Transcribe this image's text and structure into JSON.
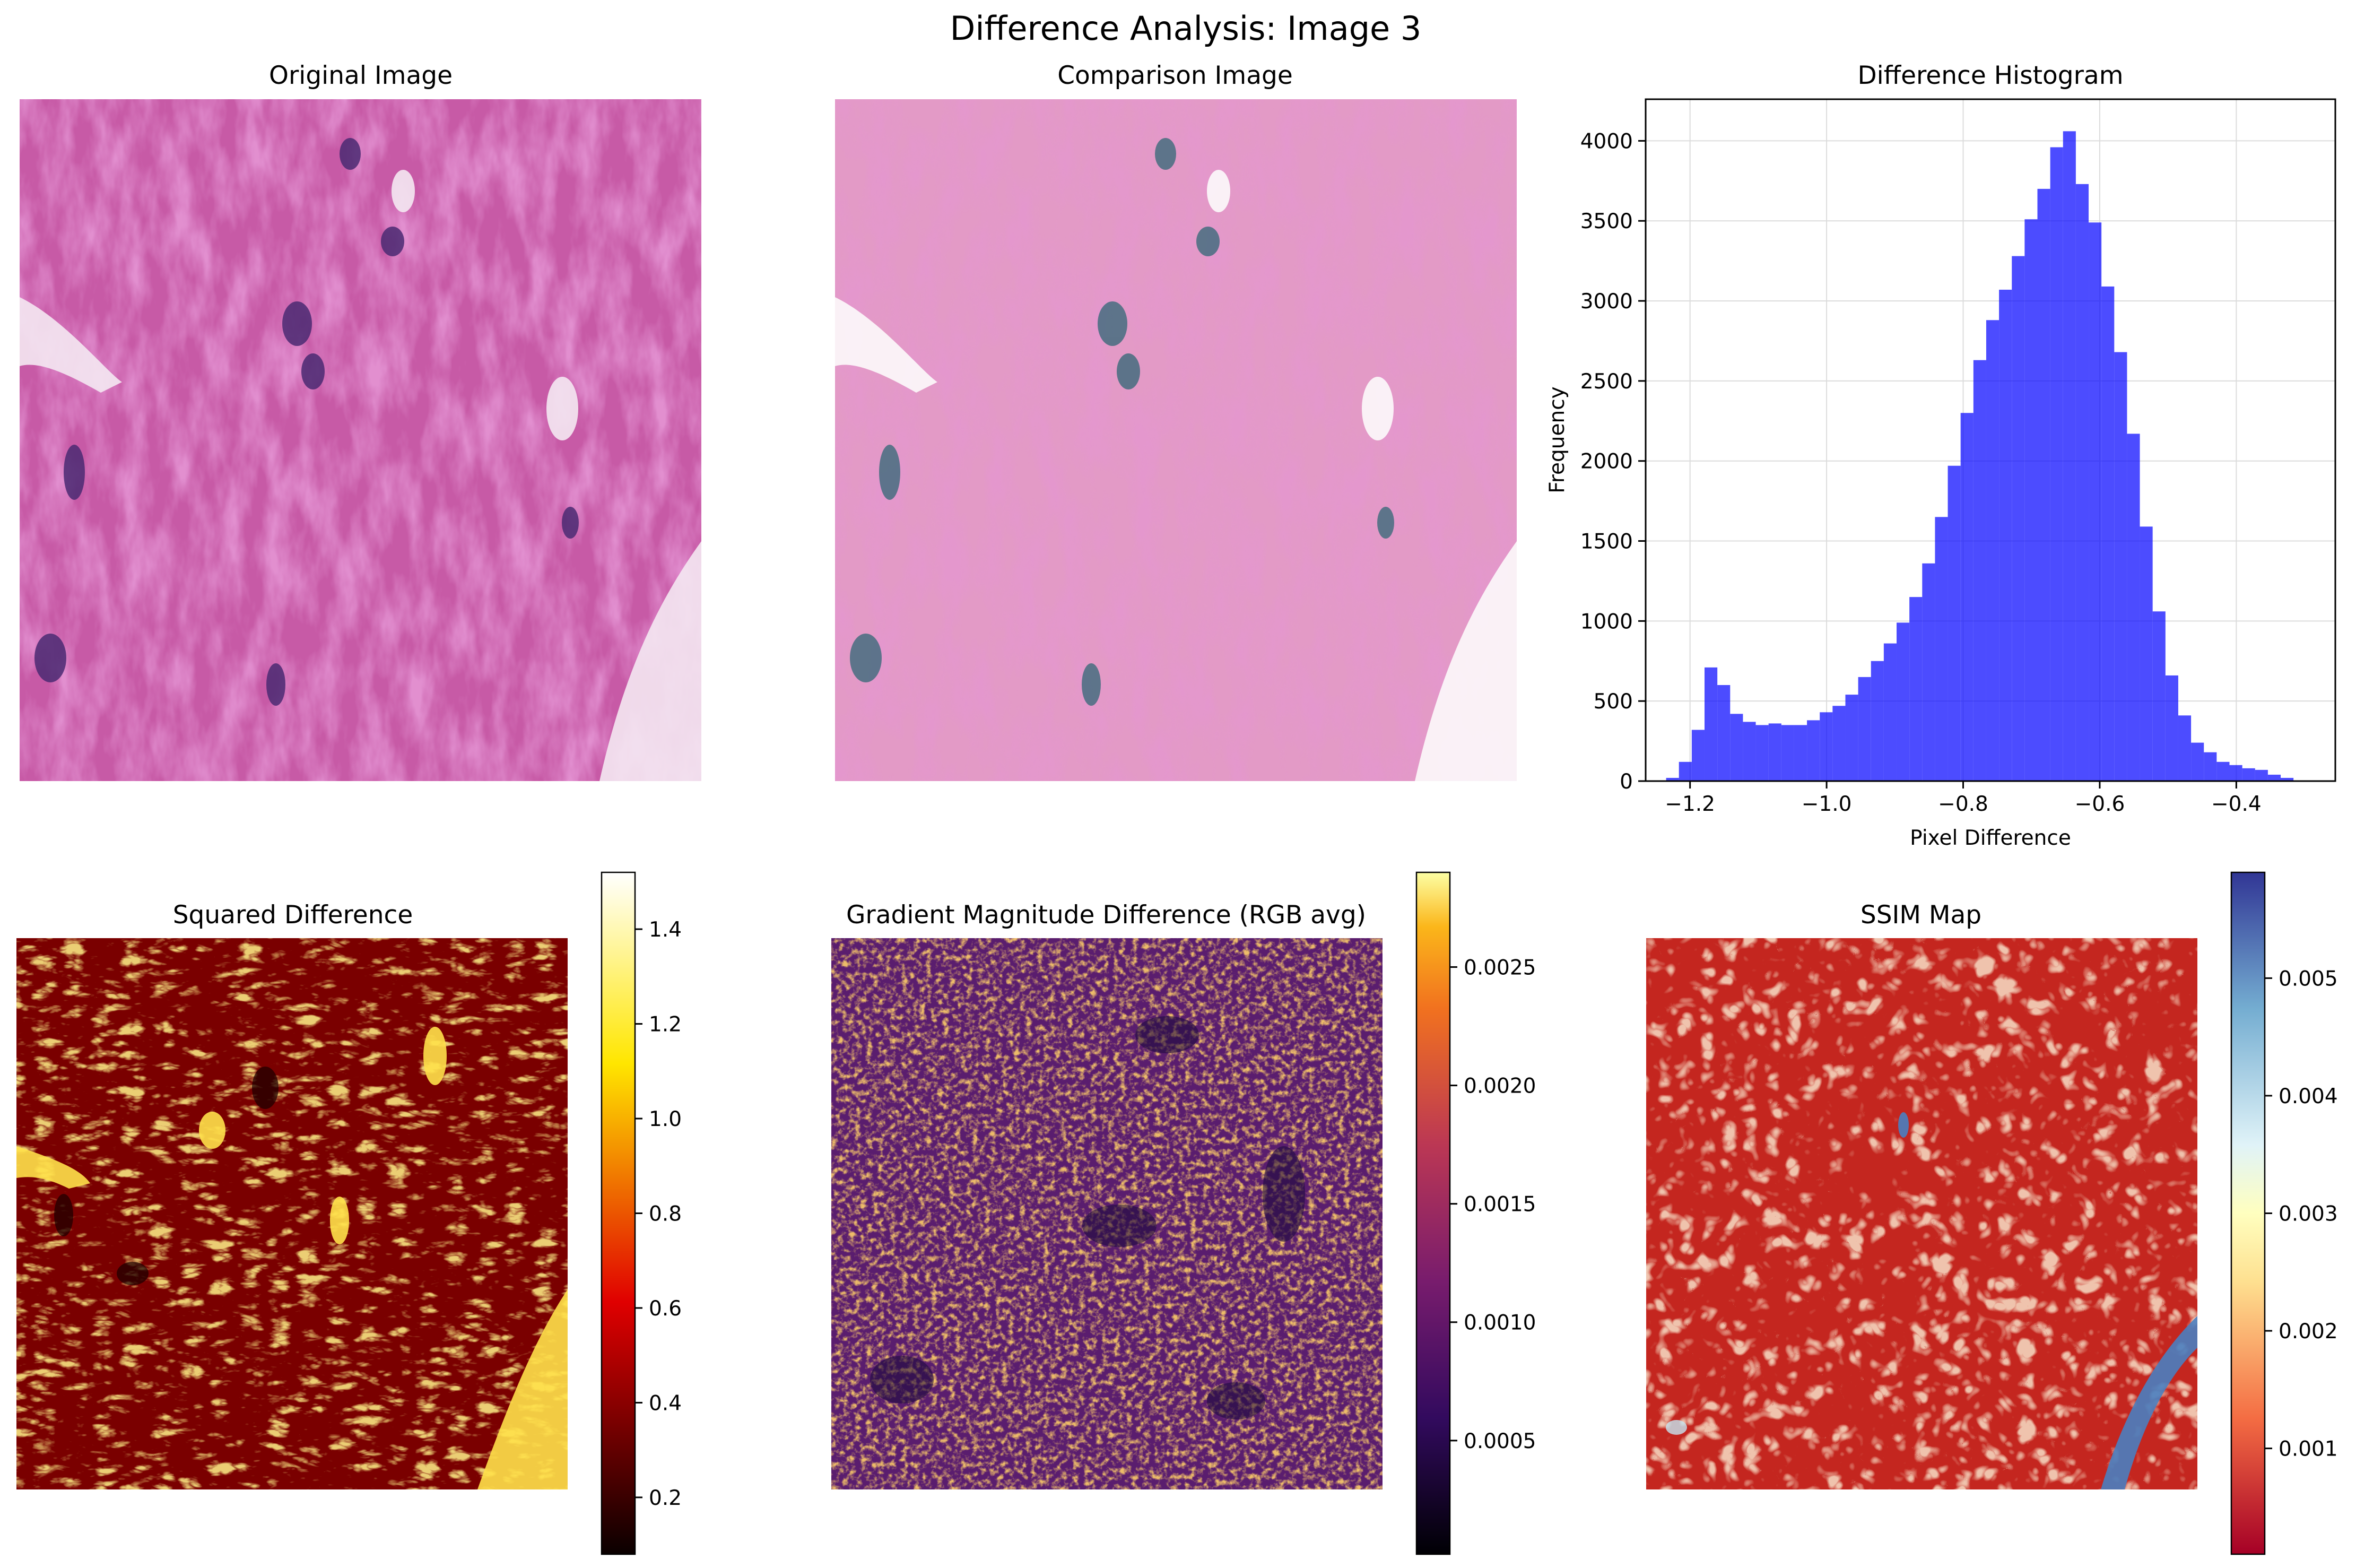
{
  "figure": {
    "title": "Difference Analysis: Image 3"
  },
  "panels": {
    "original": {
      "title": "Original Image"
    },
    "comparison": {
      "title": "Comparison Image"
    },
    "squared_difference": {
      "title": "Squared Difference",
      "colormap": "hot",
      "colorbar": {
        "ticks": [
          "0.2",
          "0.4",
          "0.6",
          "0.8",
          "1.0",
          "1.2",
          "1.4"
        ],
        "range": [
          0.08,
          1.52
        ]
      }
    },
    "gradient_difference": {
      "title": "Gradient Magnitude Difference (RGB avg)",
      "colormap": "inferno",
      "colorbar": {
        "ticks": [
          "0.0005",
          "0.0010",
          "0.0015",
          "0.0020",
          "0.0025"
        ],
        "range": [
          2e-05,
          0.0029
        ]
      }
    },
    "ssim_map": {
      "title": "SSIM Map",
      "colormap": "RdYlBu",
      "colorbar": {
        "ticks": [
          "0.001",
          "0.002",
          "0.003",
          "0.004",
          "0.005"
        ],
        "range": [
          0.0001,
          0.0059
        ]
      }
    }
  },
  "chart_data": {
    "type": "bar",
    "title": "Difference Histogram",
    "xlabel": "Pixel Difference",
    "ylabel": "Frequency",
    "xlim": [
      -1.265,
      -0.255
    ],
    "ylim": [
      0,
      4260
    ],
    "xticks": [
      -1.2,
      -1.0,
      -0.8,
      -0.6,
      -0.4
    ],
    "xtick_labels": [
      "−1.2",
      "−1.0",
      "−0.8",
      "−0.6",
      "−0.4"
    ],
    "yticks": [
      0,
      500,
      1000,
      1500,
      2000,
      2500,
      3000,
      3500,
      4000
    ],
    "ytick_labels": [
      "0",
      "500",
      "1000",
      "1500",
      "2000",
      "2500",
      "3000",
      "3500",
      "4000"
    ],
    "grid": true,
    "color": "#0000ff",
    "bin_start": -1.235,
    "bin_width": 0.01875,
    "values": [
      20,
      120,
      320,
      710,
      600,
      420,
      370,
      350,
      360,
      350,
      350,
      380,
      430,
      470,
      540,
      650,
      750,
      860,
      990,
      1150,
      1360,
      1650,
      1970,
      2300,
      2630,
      2880,
      3070,
      3280,
      3510,
      3700,
      3960,
      4060,
      3730,
      3490,
      3090,
      2680,
      2170,
      1590,
      1060,
      660,
      410,
      240,
      180,
      120,
      100,
      80,
      70,
      40,
      20
    ]
  }
}
